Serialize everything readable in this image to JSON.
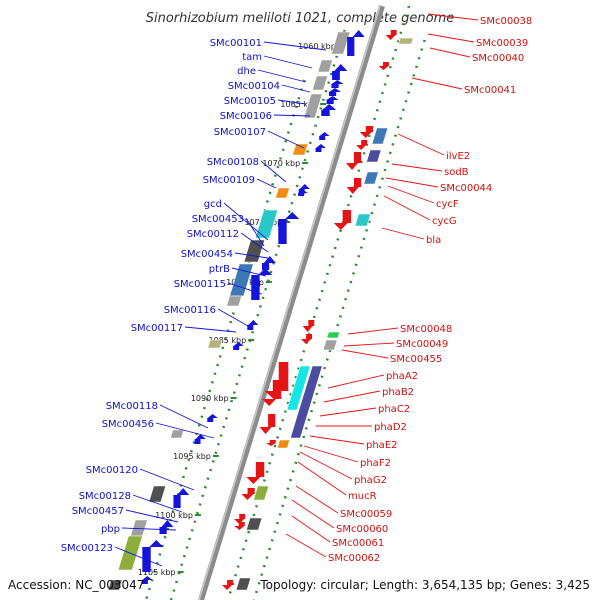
{
  "title": "Sinorhizobium meliloti 1021, complete genome",
  "footer": {
    "accession": "Accession: NC_003047",
    "summary": "Topology: circular; Length: 3,654,135 bp; Genes: 3,425"
  },
  "ticks": [
    "1060 kbp",
    "1065 kbp",
    "1070 kbp",
    "1075 kbp",
    "1080 kbp",
    "1085 kbp",
    "1090 kbp",
    "1095 kbp",
    "1100 kbp",
    "1105 kbp"
  ],
  "genes_forward": [
    "SMc00101",
    "tam",
    "dhe",
    "SMc00104",
    "SMc00105",
    "SMc00106",
    "SMc00107",
    "SMc00108",
    "SMc00109",
    "gcd",
    "SMc00453",
    "SMc00112",
    "SMc00454",
    "ptrB",
    "SMc00115",
    "SMc00116",
    "SMc00117",
    "SMc00118",
    "SMc00456",
    "SMc00120",
    "SMc00128",
    "SMc00457",
    "pbp",
    "SMc00123"
  ],
  "genes_reverse": [
    "SMc00038",
    "SMc00039",
    "SMc00040",
    "SMc00041",
    "ilvE2",
    "sodB",
    "SMc00044",
    "cycF",
    "cycG",
    "bla",
    "SMc00048",
    "SMc00049",
    "SMc00455",
    "phaA2",
    "phaB2",
    "phaC2",
    "phaD2",
    "phaE2",
    "phaF2",
    "phaG2",
    "mucR",
    "SMc00059",
    "SMc00060",
    "SMc00061",
    "SMc00062"
  ],
  "colors": {
    "forward_arrow": "#1414dc",
    "reverse_arrow": "#e61414",
    "backbone": "#8c8c8c",
    "tick_dots": "#2a8c2a",
    "label_forward": "#1010c8",
    "label_reverse": "#d01010",
    "feature_gray": "#a0a0a0",
    "feature_dark": "#505050",
    "feature_orange": "#f08c14",
    "feature_teal": "#2ac8c8",
    "feature_olive": "#8cae3c",
    "feature_steel": "#3c78b4",
    "feature_khaki": "#b4b478",
    "feature_purple": "#4b4ba0",
    "feature_green": "#28d250",
    "feature_cyan": "#14e6e6"
  }
}
